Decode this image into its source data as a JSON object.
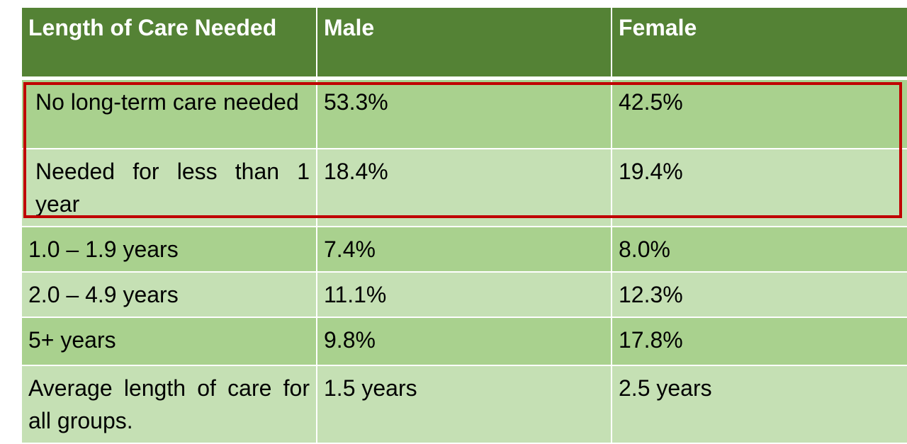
{
  "table": {
    "headers": [
      "Length of Care Needed",
      "Male",
      "Female"
    ],
    "rows": [
      [
        "No long-term care needed",
        "53.3%",
        "42.5%"
      ],
      [
        "Needed for less than 1 year",
        "18.4%",
        "19.4%"
      ],
      [
        "1.0 – 1.9 years",
        "7.4%",
        "8.0%"
      ],
      [
        "2.0 – 4.9 years",
        "11.1%",
        "12.3%"
      ],
      [
        "5+ years",
        "9.8%",
        "17.8%"
      ],
      [
        "Average length of care for all groups.",
        "1.5 years",
        "2.5 years"
      ]
    ]
  },
  "colors": {
    "header_bg": "#548235",
    "row_dark": "#a9d18e",
    "row_light": "#c5e0b4",
    "highlight_border": "#c00000"
  }
}
